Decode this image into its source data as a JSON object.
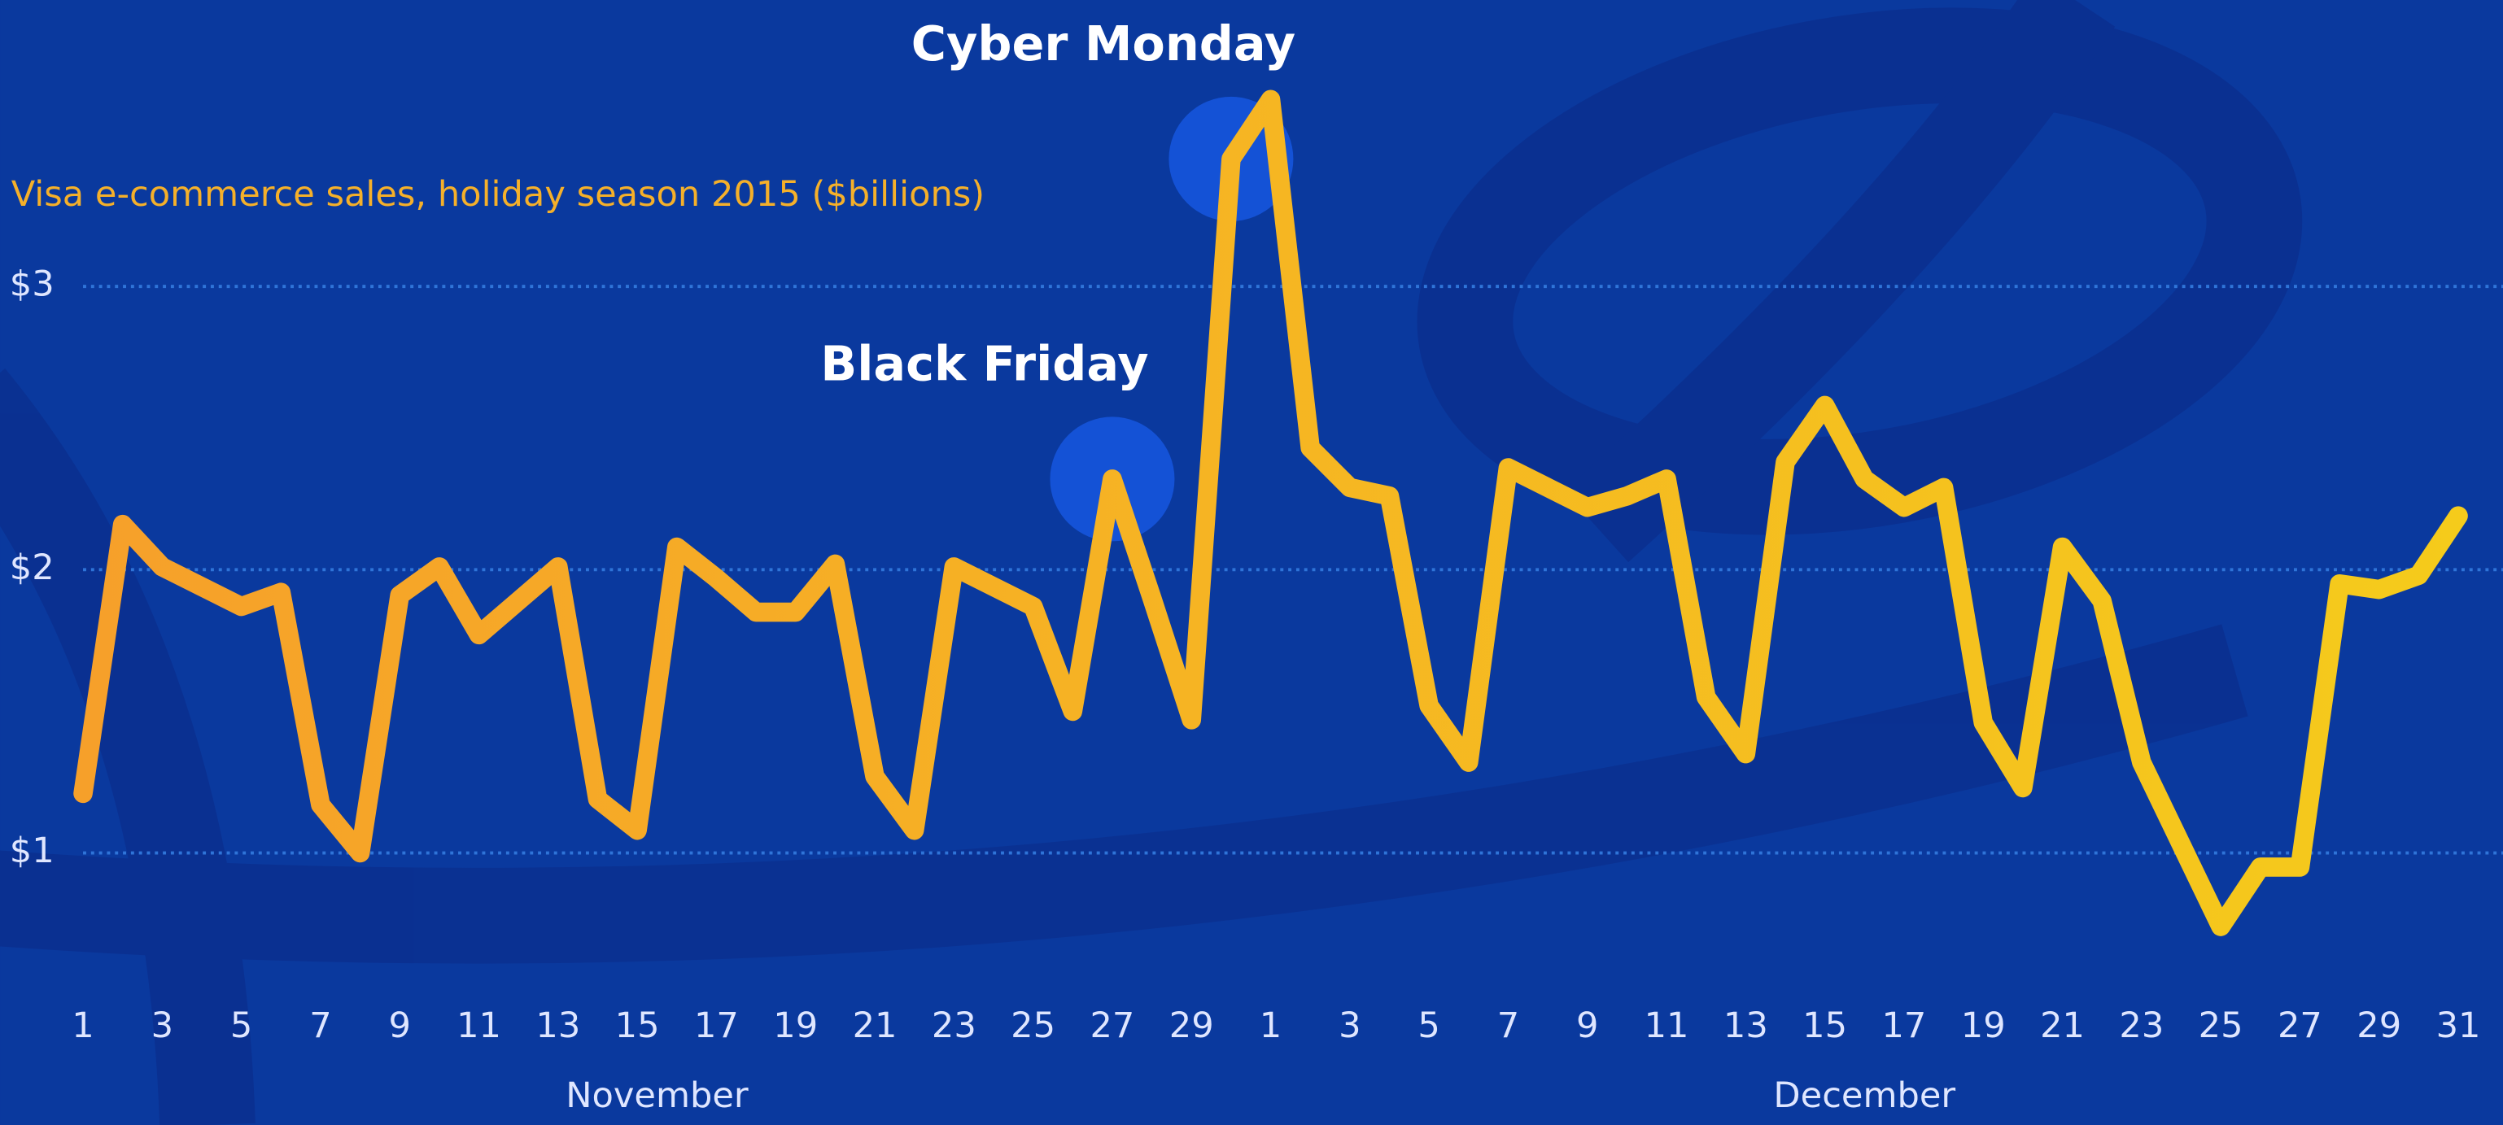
{
  "chart_data": {
    "type": "line",
    "title": "Visa e-commerce sales, holiday season 2015 ($billions)",
    "categories": [
      "1",
      null,
      "3",
      null,
      "5",
      null,
      "7",
      null,
      "9",
      null,
      "11",
      null,
      "13",
      null,
      "15",
      null,
      "17",
      null,
      "19",
      null,
      "21",
      null,
      "23",
      null,
      "25",
      null,
      "27",
      null,
      "29",
      null,
      "1",
      null,
      "3",
      null,
      "5",
      null,
      "7",
      null,
      "9",
      null,
      "11",
      null,
      "13",
      null,
      "15",
      null,
      "17",
      null,
      "19",
      null,
      "21",
      null,
      "23",
      null,
      "25",
      null,
      "27",
      null,
      "29",
      null,
      "31"
    ],
    "months": [
      {
        "label": "November",
        "start": 0,
        "end": 29
      },
      {
        "label": "December",
        "start": 30,
        "end": 60
      }
    ],
    "values": [
      1.21,
      2.16,
      2.01,
      1.94,
      1.87,
      1.92,
      1.17,
      1.0,
      1.91,
      2.01,
      1.77,
      1.89,
      2.01,
      1.19,
      1.08,
      2.08,
      1.97,
      1.85,
      1.85,
      2.02,
      1.27,
      1.08,
      2.01,
      1.94,
      1.87,
      1.5,
      2.32,
      1.9,
      1.47,
      3.45,
      3.66,
      2.43,
      2.29,
      2.26,
      1.52,
      1.32,
      2.36,
      2.29,
      2.22,
      2.26,
      2.32,
      1.55,
      1.35,
      2.38,
      2.58,
      2.32,
      2.22,
      2.29,
      1.46,
      1.23,
      2.08,
      1.89,
      1.32,
      1.03,
      0.74,
      0.95,
      0.95,
      1.95,
      1.93,
      1.98,
      2.19
    ],
    "colors": [
      "#f6a02a",
      "#f5cb1b"
    ],
    "ylim": [
      0,
      4
    ],
    "yticks": [
      {
        "value": 1,
        "label": "$1"
      },
      {
        "value": 2,
        "label": "$2"
      },
      {
        "value": 3,
        "label": "$3"
      }
    ],
    "grid": true,
    "annotations": [
      {
        "text": "Black Friday",
        "index": 26
      },
      {
        "text": "Cyber Monday",
        "index": 29
      }
    ]
  }
}
